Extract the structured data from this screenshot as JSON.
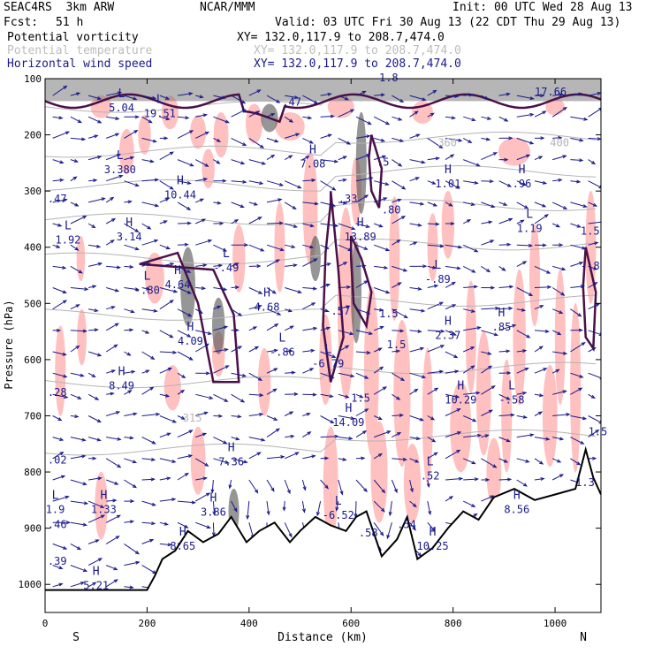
{
  "header": {
    "model": "SEAC4RS  3km ARW",
    "org": "NCAR/MMM",
    "init": "Init: 00 UTC Wed 28 Aug 13",
    "fcst_label": "Fcst:",
    "fcst_value": "51 h",
    "valid": "Valid: 03 UTC Fri 30 Aug 13 (22 CDT Thu 29 Aug 13)"
  },
  "fields": [
    {
      "name": "Potential vorticity",
      "xy": "XY= 132.0,117.9 to 208.7,474.0",
      "color": "#000000"
    },
    {
      "name": "Potential temperature",
      "xy": "XY= 132.0,117.9 to 208.7,474.0",
      "color": "#bdbdbd"
    },
    {
      "name": "Horizontal wind speed",
      "xy": "XY= 132.0,117.9 to 208.7,474.0",
      "color": "#1a1a8c"
    }
  ],
  "chart_data": {
    "type": "contour cross-section",
    "xlabel": "Distance (km)",
    "ylabel": "Pressure (hPa)",
    "x_ticks": [
      0,
      200,
      400,
      600,
      800,
      1000
    ],
    "y_ticks": [
      100,
      200,
      300,
      400,
      500,
      600,
      700,
      800,
      900,
      1000
    ],
    "xlim": [
      0,
      1090
    ],
    "ylim": [
      1050,
      100
    ],
    "left_end_label": "S",
    "right_end_label": "N",
    "colors": {
      "pv_contour": "#4b1048",
      "theta": "#b4b4b4",
      "wind": "#1a1a8c",
      "positive_shading": "#ffc0c0",
      "high_pv_shading": "#505050",
      "terrain": "#000000"
    },
    "terrain": [
      [
        0,
        1010
      ],
      [
        200,
        1010
      ],
      [
        215,
        985
      ],
      [
        230,
        955
      ],
      [
        255,
        940
      ],
      [
        280,
        905
      ],
      [
        310,
        925
      ],
      [
        340,
        910
      ],
      [
        365,
        880
      ],
      [
        395,
        925
      ],
      [
        420,
        905
      ],
      [
        450,
        890
      ],
      [
        480,
        925
      ],
      [
        500,
        905
      ],
      [
        530,
        880
      ],
      [
        560,
        895
      ],
      [
        590,
        905
      ],
      [
        610,
        880
      ],
      [
        630,
        870
      ],
      [
        660,
        950
      ],
      [
        690,
        920
      ],
      [
        710,
        880
      ],
      [
        730,
        955
      ],
      [
        760,
        935
      ],
      [
        790,
        900
      ],
      [
        820,
        870
      ],
      [
        850,
        885
      ],
      [
        880,
        845
      ],
      [
        920,
        830
      ],
      [
        960,
        850
      ],
      [
        1000,
        840
      ],
      [
        1040,
        830
      ],
      [
        1060,
        760
      ],
      [
        1075,
        810
      ],
      [
        1090,
        840
      ]
    ],
    "theta_labels": [
      {
        "text": "315",
        "x": 270,
        "p": 710
      },
      {
        "text": "360",
        "x": 770,
        "p": 220
      },
      {
        "text": "400",
        "x": 990,
        "p": 220
      }
    ],
    "extrema": [
      {
        "kind": "L",
        "value": "5.04",
        "x": 150,
        "p": 155
      },
      {
        "kind": "L",
        "value": "19.51",
        "x": 225,
        "p": 165
      },
      {
        "kind": "L",
        "value": "3.380",
        "x": 147,
        "p": 265
      },
      {
        "kind": "H",
        "value": "7.08",
        "x": 525,
        "p": 255
      },
      {
        "kind": "H",
        "value": "10.44",
        "x": 265,
        "p": 310
      },
      {
        "kind": "H",
        "value": "1.01",
        "x": 790,
        "p": 290
      },
      {
        "kind": "H",
        "value": ".96",
        "x": 935,
        "p": 290
      },
      {
        "kind": "L",
        "value": "1.92",
        "x": 45,
        "p": 390
      },
      {
        "kind": "H",
        "value": "3.14",
        "x": 165,
        "p": 385
      },
      {
        "kind": "L",
        "value": "1.19",
        "x": 950,
        "p": 370
      },
      {
        "kind": "H",
        "value": "13.89",
        "x": 618,
        "p": 385
      },
      {
        "kind": "L",
        "value": "-.49",
        "x": 355,
        "p": 440
      },
      {
        "kind": "L",
        "value": "-.89",
        "x": 770,
        "p": 460
      },
      {
        "kind": "L",
        "value": "-.80",
        "x": 200,
        "p": 480
      },
      {
        "kind": "H",
        "value": "4.64",
        "x": 260,
        "p": 470
      },
      {
        "kind": "H",
        "value": "4.68",
        "x": 435,
        "p": 510
      },
      {
        "kind": "H",
        "value": "4.09",
        "x": 285,
        "p": 570
      },
      {
        "kind": "H",
        "value": "2.37",
        "x": 790,
        "p": 560
      },
      {
        "kind": "H",
        "value": ".85",
        "x": 895,
        "p": 545
      },
      {
        "kind": "L",
        "value": "-.86",
        "x": 465,
        "p": 590
      },
      {
        "kind": "L",
        "value": "-6.79",
        "x": 555,
        "p": 610
      },
      {
        "kind": "H",
        "value": "8.49",
        "x": 150,
        "p": 650
      },
      {
        "kind": "H",
        "value": "10.29",
        "x": 815,
        "p": 675
      },
      {
        "kind": "L",
        "value": "-.58",
        "x": 915,
        "p": 675
      },
      {
        "kind": "H",
        "value": "14.09",
        "x": 595,
        "p": 715
      },
      {
        "kind": "L",
        "value": ".52",
        "x": 755,
        "p": 810
      },
      {
        "kind": "H",
        "value": "7.36",
        "x": 365,
        "p": 785
      },
      {
        "kind": "H",
        "value": "3.86",
        "x": 330,
        "p": 875
      },
      {
        "kind": "L",
        "value": "-6.52",
        "x": 575,
        "p": 880
      },
      {
        "kind": "L",
        "value": "1.9",
        "x": 20,
        "p": 870
      },
      {
        "kind": "H",
        "value": "1.33",
        "x": 115,
        "p": 870
      },
      {
        "kind": "H",
        "value": "8.65",
        "x": 270,
        "p": 935
      },
      {
        "kind": "H",
        "value": "10.25",
        "x": 760,
        "p": 935
      },
      {
        "kind": "H",
        "value": "8.56",
        "x": 925,
        "p": 870
      },
      {
        "kind": "H",
        "value": "5.21",
        "x": 100,
        "p": 1005
      }
    ],
    "edge_values": [
      {
        "text": ".47",
        "x": 5,
        "p": 320
      },
      {
        "text": ".28",
        "x": 5,
        "p": 665
      },
      {
        "text": ".02",
        "x": 5,
        "p": 785
      },
      {
        "text": ".46",
        "x": 5,
        "p": 900
      },
      {
        "text": ".39",
        "x": 5,
        "p": 965
      },
      {
        "text": ".47",
        "x": 465,
        "p": 148
      },
      {
        "text": "1.5",
        "x": 1050,
        "p": 378
      },
      {
        "text": "-.8",
        "x": 1050,
        "p": 440
      },
      {
        "text": ".33",
        "x": 575,
        "p": 320
      },
      {
        "text": ".80",
        "x": 660,
        "p": 340
      },
      {
        "text": "1.5",
        "x": 670,
        "p": 580
      },
      {
        "text": "1.5",
        "x": 600,
        "p": 675
      },
      {
        "text": ".5",
        "x": 650,
        "p": 255
      },
      {
        "text": "-.57",
        "x": 548,
        "p": 520
      },
      {
        "text": "1.5",
        "x": 655,
        "p": 525
      },
      {
        "text": "1.3",
        "x": 1040,
        "p": 825
      },
      {
        "text": "1.5",
        "x": 1065,
        "p": 735
      },
      {
        "text": ".58",
        "x": 615,
        "p": 915
      },
      {
        "text": ".54",
        "x": 690,
        "p": 900
      },
      {
        "text": "17.66",
        "x": 960,
        "p": 130
      },
      {
        "text": "1.8",
        "x": 655,
        "p": 105
      }
    ]
  }
}
